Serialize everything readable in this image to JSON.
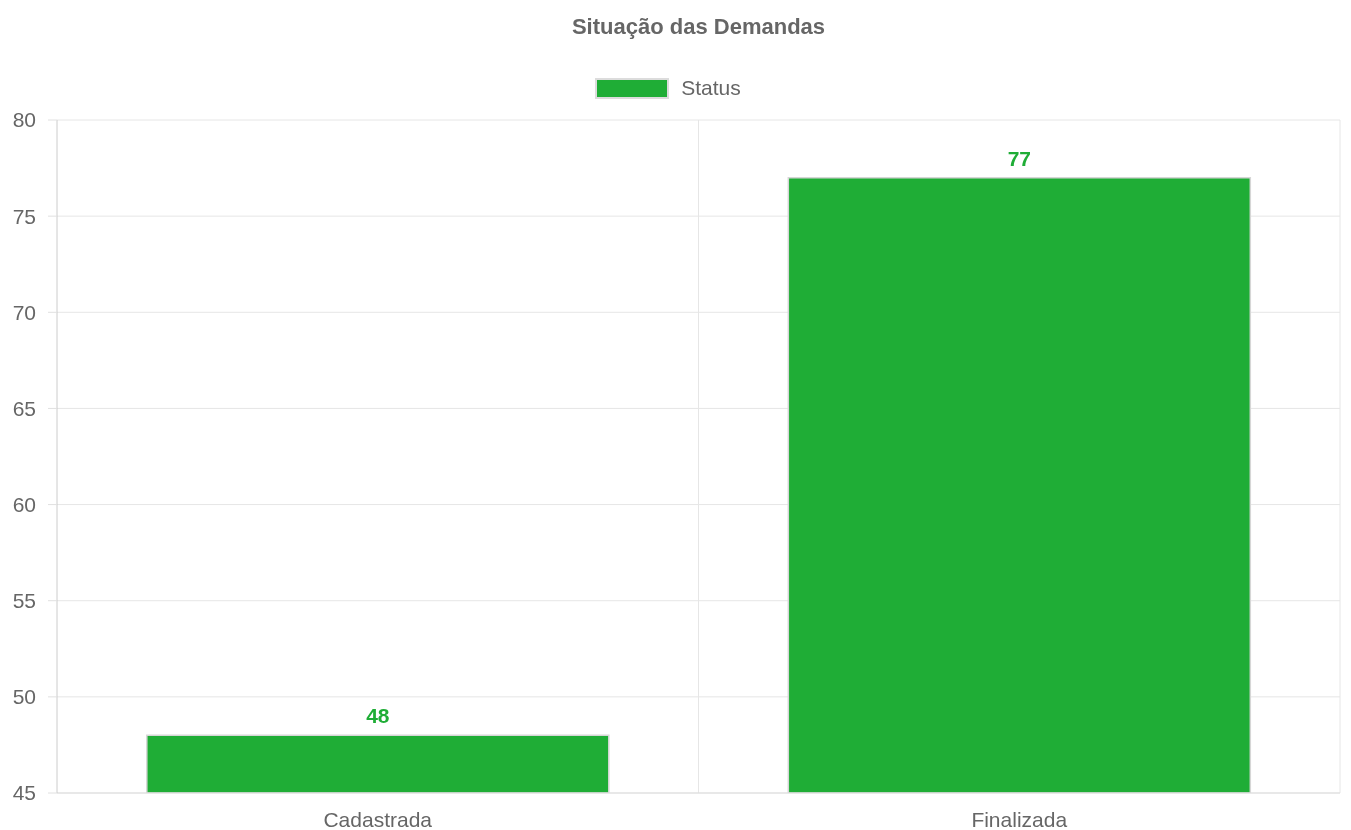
{
  "chart_data": {
    "type": "bar",
    "title": "Situação das Demandas",
    "categories": [
      "Cadastrada",
      "Finalizada"
    ],
    "series": [
      {
        "name": "Status",
        "color": "#1fad36",
        "values": [
          48,
          77
        ]
      }
    ],
    "ylim": [
      45,
      80
    ],
    "yticks": [
      45,
      50,
      55,
      60,
      65,
      70,
      75,
      80
    ],
    "grid": true,
    "legend": "top",
    "data_labels": true
  }
}
